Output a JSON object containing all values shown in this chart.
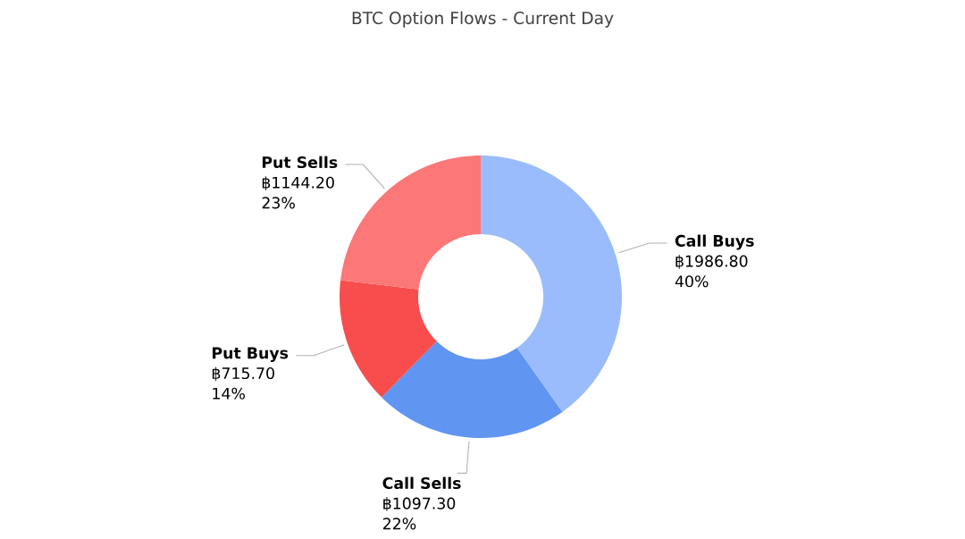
{
  "chart_data": {
    "type": "donut",
    "title": "BTC Option Flows - Current Day",
    "categories": [
      "Call Buys",
      "Call Sells",
      "Put Buys",
      "Put Sells"
    ],
    "values": [
      1986.8,
      1097.3,
      715.7,
      1144.2
    ],
    "value_labels": [
      "฿1986.80",
      "฿1097.30",
      "฿715.70",
      "฿1144.20"
    ],
    "annotations": [
      "40%",
      "22%",
      "14%",
      "23%"
    ],
    "colors": [
      "#9bbcfc",
      "#6095f2",
      "#f84d4d",
      "#fc7777"
    ]
  }
}
